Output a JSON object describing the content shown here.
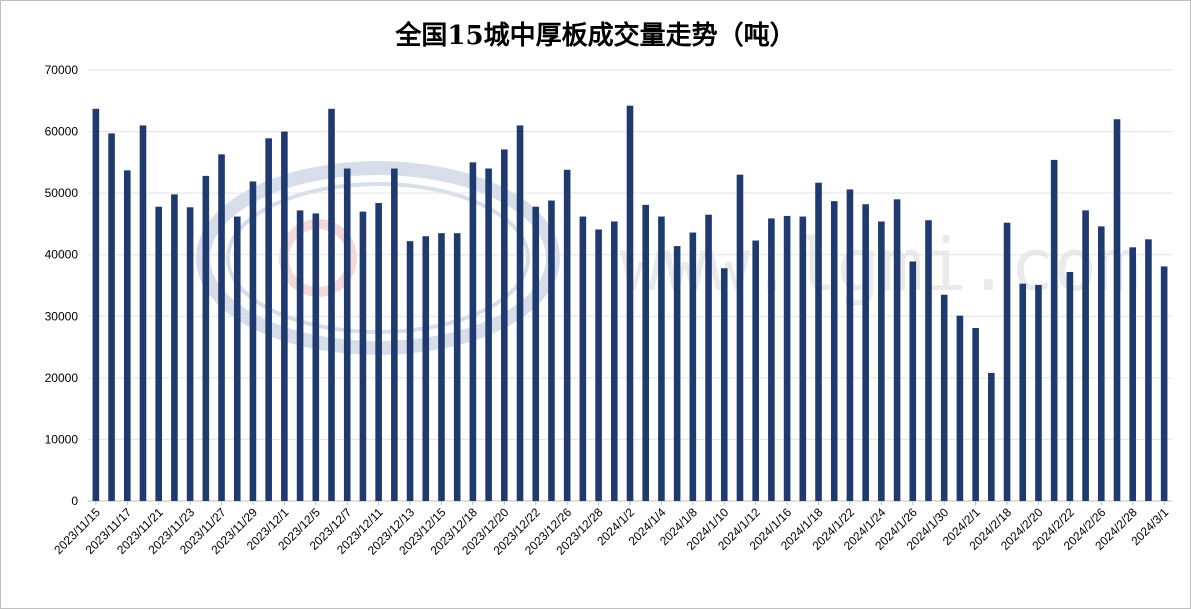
{
  "chart_data": {
    "type": "bar",
    "title": "全国15城中厚板成交量走势（吨）",
    "xlabel": "",
    "ylabel": "",
    "ylim": [
      0,
      70000
    ],
    "yticks": [
      0,
      10000,
      20000,
      30000,
      40000,
      50000,
      60000,
      70000
    ],
    "grid": true,
    "bar_color": "#1f3a6e",
    "watermark": "www.lgmi.com",
    "values": [
      63700,
      59700,
      53700,
      61000,
      47800,
      49800,
      47700,
      52800,
      56300,
      46200,
      51900,
      58900,
      60000,
      47200,
      46700,
      63700,
      54000,
      47000,
      48400,
      54000,
      42200,
      43000,
      43500,
      43500,
      55000,
      54000,
      57100,
      61000,
      47800,
      48800,
      53800,
      46200,
      44100,
      45400,
      64200,
      48100,
      46200,
      41400,
      43600,
      46500,
      37800,
      53000,
      42300,
      45900,
      46300,
      46200,
      51700,
      48700,
      50600,
      48200,
      45400,
      49000,
      38900,
      45600,
      33500,
      30100,
      28100,
      20800,
      45200,
      35300,
      35100,
      55400,
      37200,
      47200,
      44600,
      62000,
      41200,
      42500,
      38100
    ],
    "tick_labels": [
      {
        "index": 0,
        "label": "2023/11/15"
      },
      {
        "index": 2,
        "label": "2023/11/17"
      },
      {
        "index": 4,
        "label": "2023/11/21"
      },
      {
        "index": 6,
        "label": "2023/11/23"
      },
      {
        "index": 8,
        "label": "2023/11/27"
      },
      {
        "index": 10,
        "label": "2023/11/29"
      },
      {
        "index": 12,
        "label": "2023/12/1"
      },
      {
        "index": 14,
        "label": "2023/12/5"
      },
      {
        "index": 16,
        "label": "2023/12/7"
      },
      {
        "index": 18,
        "label": "2023/12/11"
      },
      {
        "index": 20,
        "label": "2023/12/13"
      },
      {
        "index": 22,
        "label": "2023/12/15"
      },
      {
        "index": 24,
        "label": "2023/12/18"
      },
      {
        "index": 26,
        "label": "2023/12/20"
      },
      {
        "index": 28,
        "label": "2023/12/22"
      },
      {
        "index": 30,
        "label": "2023/12/26"
      },
      {
        "index": 32,
        "label": "2023/12/28"
      },
      {
        "index": 34,
        "label": "2024/1/2"
      },
      {
        "index": 36,
        "label": "2024/1/4"
      },
      {
        "index": 38,
        "label": "2024/1/8"
      },
      {
        "index": 40,
        "label": "2024/1/10"
      },
      {
        "index": 42,
        "label": "2024/1/12"
      },
      {
        "index": 44,
        "label": "2024/1/16"
      },
      {
        "index": 46,
        "label": "2024/1/18"
      },
      {
        "index": 48,
        "label": "2024/1/22"
      },
      {
        "index": 50,
        "label": "2024/1/24"
      },
      {
        "index": 52,
        "label": "2024/1/26"
      },
      {
        "index": 54,
        "label": "2024/1/30"
      },
      {
        "index": 56,
        "label": "2024/2/1"
      },
      {
        "index": 58,
        "label": "2024/2/18"
      },
      {
        "index": 60,
        "label": "2024/2/20"
      },
      {
        "index": 62,
        "label": "2024/2/22"
      },
      {
        "index": 64,
        "label": "2024/2/26"
      },
      {
        "index": 66,
        "label": "2024/2/28"
      },
      {
        "index": 68,
        "label": "2024/3/1"
      }
    ]
  }
}
